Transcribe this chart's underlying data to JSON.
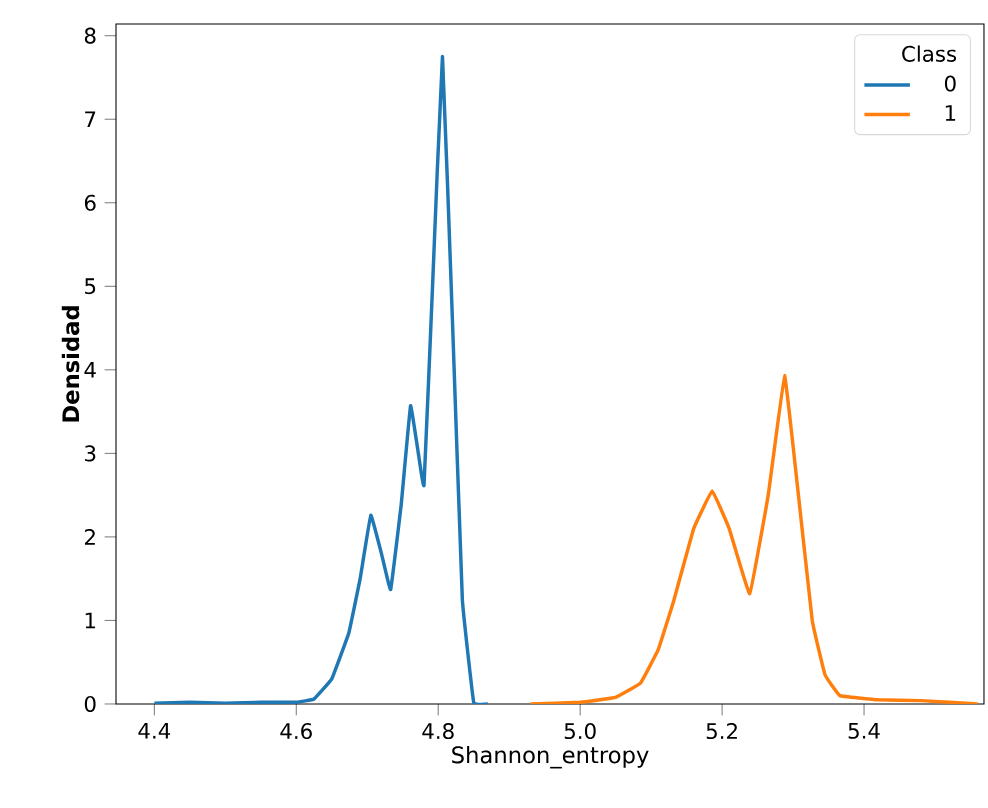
{
  "chart_data": {
    "type": "line",
    "xlabel": "Shannon_entropy",
    "ylabel": "Densidad",
    "legend_title": "Class",
    "legend": "top right",
    "grid": false,
    "marker": "none",
    "line_style": "solid",
    "xlim": [
      4.346,
      5.569
    ],
    "ylim": [
      0,
      8.14
    ],
    "xticks": [
      {
        "value": 4.4,
        "label": "4.4"
      },
      {
        "value": 4.6,
        "label": "4.6"
      },
      {
        "value": 4.8,
        "label": "4.8"
      },
      {
        "value": 5.0,
        "label": "5.0"
      },
      {
        "value": 5.2,
        "label": "5.2"
      },
      {
        "value": 5.4,
        "label": "5.4"
      }
    ],
    "yticks": [
      0,
      1,
      2,
      3,
      4,
      5,
      6,
      7,
      8
    ],
    "series": [
      {
        "name": "0",
        "color": "#1f77b4",
        "x": [
          4.4,
          4.45,
          4.5,
          4.55,
          4.6,
          4.625,
          4.65,
          4.674,
          4.69,
          4.705,
          4.72,
          4.733,
          4.748,
          4.761,
          4.772,
          4.78,
          4.792,
          4.806,
          4.82,
          4.834,
          4.85,
          4.87
        ],
        "values": [
          0.01,
          0.02,
          0.01,
          0.02,
          0.02,
          0.06,
          0.3,
          0.85,
          1.5,
          2.26,
          1.8,
          1.37,
          2.4,
          3.57,
          3.0,
          2.62,
          5.0,
          7.75,
          4.6,
          1.25,
          0.02,
          0
        ]
      },
      {
        "name": "1",
        "color": "#ff7f0e",
        "x": [
          4.93,
          5.0,
          5.05,
          5.085,
          5.11,
          5.132,
          5.16,
          5.186,
          5.21,
          5.239,
          5.265,
          5.288,
          5.305,
          5.327,
          5.345,
          5.366,
          5.42,
          5.48,
          5.56
        ],
        "values": [
          0,
          0.02,
          0.08,
          0.25,
          0.65,
          1.24,
          2.1,
          2.55,
          2.1,
          1.32,
          2.5,
          3.93,
          2.7,
          1.0,
          0.35,
          0.1,
          0.05,
          0.04,
          0
        ]
      }
    ]
  }
}
